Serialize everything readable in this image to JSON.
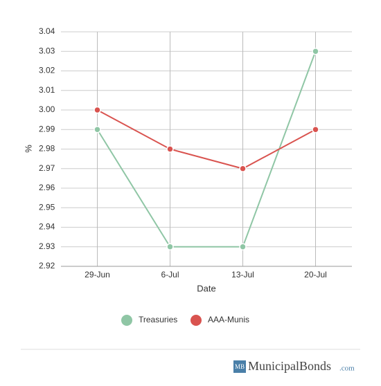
{
  "chart_data": {
    "type": "line",
    "categories": [
      "29-Jun",
      "6-Jul",
      "13-Jul",
      "20-Jul"
    ],
    "series": [
      {
        "name": "Treasuries",
        "color": "#8fc6a5",
        "values": [
          2.99,
          2.93,
          2.93,
          3.03
        ]
      },
      {
        "name": "AAA-Munis",
        "color": "#d9534f",
        "values": [
          3.0,
          2.98,
          2.97,
          2.99
        ]
      }
    ],
    "ylim": [
      2.92,
      3.04
    ],
    "yticks": [
      2.92,
      2.93,
      2.94,
      2.95,
      2.96,
      2.97,
      2.98,
      2.99,
      {
        "value": 3.0,
        "label": "3.00"
      },
      3.01,
      3.02,
      3.03,
      3.04
    ],
    "ylabel": "%",
    "xlabel": "Date",
    "grid": true,
    "legend": "bottom"
  },
  "footer": {
    "logo": "MB",
    "brand": "MunicipalBonds",
    "domain": ".com"
  }
}
